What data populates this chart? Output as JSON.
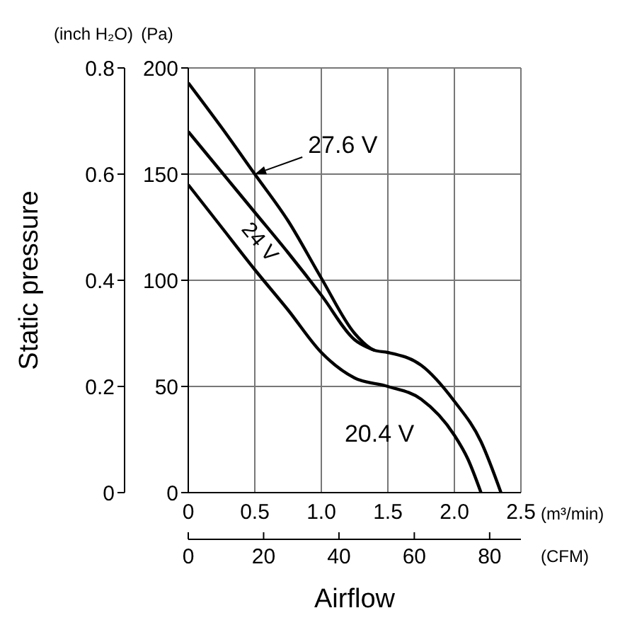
{
  "chart_data": {
    "type": "line",
    "xlabel": "Airflow",
    "ylabel": "Static pressure",
    "y2label": "(Pa)",
    "x2label": "(CFM)",
    "annotations": [
      "(inch H₂O)",
      "(m³/min)"
    ],
    "xlim": [
      0,
      2.5
    ],
    "xticks": [
      0,
      0.5,
      {
        "value": 1,
        "label": "1.0"
      },
      1.5,
      {
        "value": 2,
        "label": "2.0"
      },
      2.5
    ],
    "ylim": [
      0,
      0.8
    ],
    "yticks": [
      0,
      0.2,
      0.4,
      0.6,
      0.8
    ],
    "y2lim": [
      0,
      200
    ],
    "y2ticks": [
      0,
      50,
      100,
      150,
      200
    ],
    "x2lim": [
      0,
      88.3
    ],
    "x2ticks": [
      0,
      20,
      40,
      60,
      80
    ],
    "grid": true,
    "legend": false,
    "marker": "none",
    "line_style": "solid",
    "series": [
      {
        "name": "27.6 V",
        "color": "#000000",
        "axis": "y2",
        "x": [
          0,
          0.25,
          0.5,
          0.75,
          1.0,
          1.25,
          1.4,
          1.5,
          1.75,
          2.0,
          2.2,
          2.35
        ],
        "values": [
          193,
          172,
          150,
          128,
          101,
          75,
          67,
          66,
          60,
          43,
          24,
          0
        ]
      },
      {
        "name": "24 V",
        "color": "#000000",
        "axis": "y2",
        "x": [
          0,
          0.25,
          0.5,
          0.75,
          1.0,
          1.25,
          1.4
        ],
        "values": [
          170,
          151,
          132,
          113,
          93,
          72,
          67
        ]
      },
      {
        "name": "20.4 V",
        "color": "#000000",
        "axis": "y2",
        "x": [
          0,
          0.25,
          0.5,
          0.75,
          1.0,
          1.25,
          1.5,
          1.75,
          2.0,
          2.1,
          2.2
        ],
        "values": [
          145,
          125,
          105,
          86,
          66,
          54,
          50,
          44,
          27,
          16,
          0
        ]
      }
    ]
  }
}
